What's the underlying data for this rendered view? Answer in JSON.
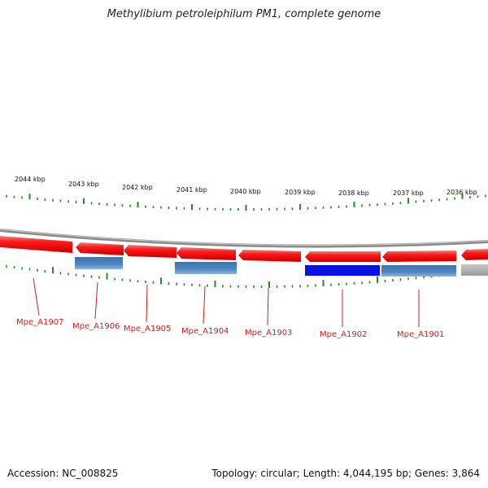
{
  "title": "Methylibium petroleiphilum PM1, complete genome",
  "footer": {
    "accession": "Accession: NC_008825",
    "summary": "Topology: circular; Length: 4,044,195 bp; Genes: 3,864"
  },
  "colors": {
    "forward_gene": "#ee1111",
    "reverse_feature": "#4a7fb5",
    "selected_feature": "#0a10e0",
    "grey_feature": "#b0b0b0",
    "ticks": "#228b22",
    "label": "#cc1f1f"
  },
  "kbp_labels": [
    "2044 kbp",
    "2043 kbp",
    "2042 kbp",
    "2041 kbp",
    "2040 kbp",
    "2039 kbp",
    "2038 kbp",
    "2037 kbp",
    "2036 kbp"
  ],
  "gene_labels": [
    "Mpe_A1907",
    "Mpe_A1906",
    "Mpe_A1905",
    "Mpe_A1904",
    "Mpe_A1903",
    "Mpe_A1902",
    "Mpe_A1901"
  ]
}
